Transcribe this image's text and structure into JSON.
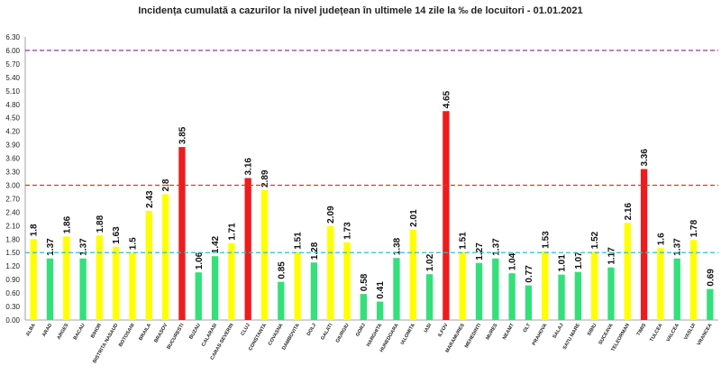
{
  "chart_data": {
    "type": "bar",
    "title": "Incidența cumulată a cazurilor la nivel județean în ultimele 14 zile la ‰ de locuitori - 01.01.2021",
    "ylim": [
      0,
      6.3
    ],
    "yticks": [
      "0.00",
      "0.30",
      "0.60",
      "0.90",
      "1.20",
      "1.50",
      "1.80",
      "2.10",
      "2.40",
      "2.70",
      "3.00",
      "3.30",
      "3.60",
      "3.90",
      "4.20",
      "4.50",
      "4.80",
      "5.10",
      "5.40",
      "5.70",
      "6.00",
      "6.30"
    ],
    "grid": false,
    "categories": [
      "ALBA",
      "ARAD",
      "ARGES",
      "BACAU",
      "BIHOR",
      "BISTRITA NASAUD",
      "BOTOSANI",
      "BRAILA",
      "BRASOV",
      "BUCURESTI",
      "BUZAU",
      "CALARASI",
      "CARAS-SEVERIN",
      "CLUJ",
      "CONSTANTA",
      "COVASNA",
      "DAMBOVITA",
      "DOLJ",
      "GALATI",
      "GIURGIU",
      "GORJ",
      "HARGHITA",
      "HUNEDOARA",
      "IALOMITA",
      "IASI",
      "ILFOV",
      "MARAMURES",
      "MEHEDINTI",
      "MURES",
      "NEAMT",
      "OLT",
      "PRAHOVA",
      "SALAJ",
      "SATU MARE",
      "SIBIU",
      "SUCEAVA",
      "TELEORMAN",
      "TIMIS",
      "TULCEA",
      "VALCEA",
      "VASLUI",
      "VRANCEA"
    ],
    "values": [
      1.8,
      1.37,
      1.86,
      1.37,
      1.88,
      1.63,
      1.5,
      2.43,
      2.8,
      3.85,
      1.06,
      1.42,
      1.71,
      3.16,
      2.89,
      0.85,
      1.51,
      1.28,
      2.09,
      1.73,
      0.58,
      0.41,
      1.38,
      2.01,
      1.02,
      4.65,
      1.51,
      1.27,
      1.37,
      1.04,
      0.77,
      1.53,
      1.01,
      1.07,
      1.52,
      1.17,
      2.16,
      3.36,
      1.6,
      1.37,
      1.78,
      0.69
    ],
    "value_labels": [
      "1.8",
      "1.37",
      "1.86",
      "1.37",
      "1.88",
      "1.63",
      "1.5",
      "2.43",
      "2.8",
      "3.85",
      "1.06",
      "1.42",
      "1.71",
      "3.16",
      "2.89",
      "0.85",
      "1.51",
      "1.28",
      "2.09",
      "1.73",
      "0.58",
      "0.41",
      "1.38",
      "2.01",
      "1.02",
      "4.65",
      "1.51",
      "1.27",
      "1.37",
      "1.04",
      "0.77",
      "1.53",
      "1.01",
      "1.07",
      "1.52",
      "1.17",
      "2.16",
      "3.36",
      "1.6",
      "1.37",
      "1.78",
      "0.69"
    ],
    "bar_colors": [
      "yellow",
      "green",
      "yellow",
      "green",
      "yellow",
      "yellow",
      "yellow",
      "yellow",
      "yellow",
      "red",
      "green",
      "green",
      "yellow",
      "red",
      "yellow",
      "green",
      "yellow",
      "green",
      "yellow",
      "yellow",
      "green",
      "green",
      "green",
      "yellow",
      "green",
      "red",
      "yellow",
      "green",
      "green",
      "green",
      "green",
      "yellow",
      "green",
      "green",
      "yellow",
      "green",
      "yellow",
      "red",
      "yellow",
      "green",
      "yellow",
      "green"
    ],
    "colors": {
      "yellow": "#ffff00",
      "green": "#33e07a",
      "red": "#ee1c1c"
    },
    "reference_lines": [
      {
        "value": 6.0,
        "color": "#8b1a9b",
        "style": "dashed"
      },
      {
        "value": 3.0,
        "color": "#e8312a",
        "style": "dashed"
      },
      {
        "value": 1.5,
        "color": "#35b6d3",
        "style": "dashed"
      }
    ]
  }
}
